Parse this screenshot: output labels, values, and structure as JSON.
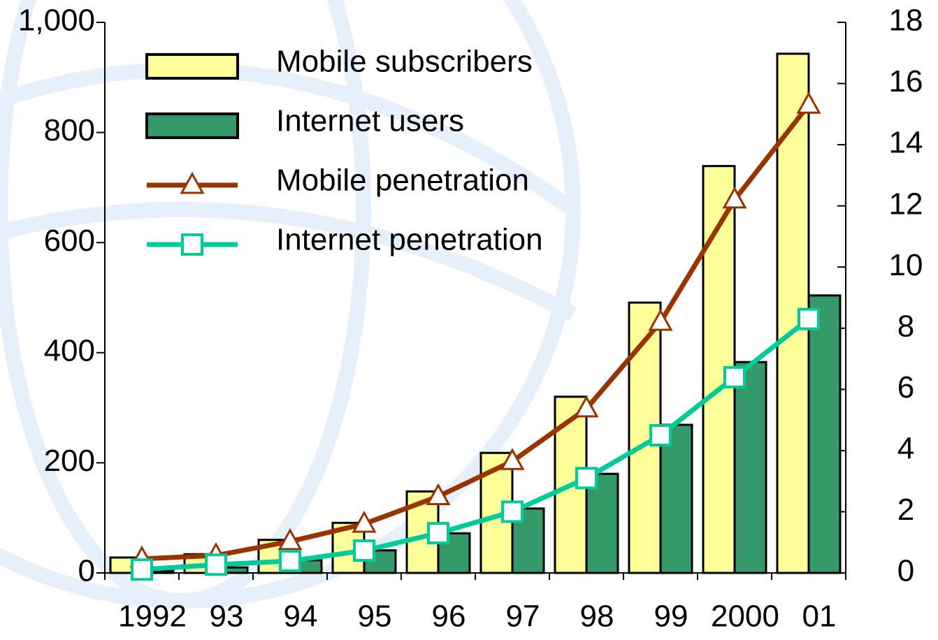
{
  "chart_data": {
    "type": "bar-line",
    "categories": [
      "1992",
      "93",
      "94",
      "95",
      "96",
      "97",
      "98",
      "99",
      "2000",
      "01"
    ],
    "series": [
      {
        "name": "Mobile subscribers",
        "type": "bar",
        "color": "#ffff99",
        "values": [
          28,
          34,
          60,
          91,
          148,
          218,
          320,
          491,
          739,
          943
        ]
      },
      {
        "name": "Internet users",
        "type": "bar",
        "color": "#339966",
        "values": [
          4,
          10,
          23,
          41,
          72,
          117,
          180,
          269,
          383,
          504
        ]
      },
      {
        "name": "Mobile penetration",
        "type": "line",
        "axis": "y2",
        "marker": "triangle",
        "color": "#993300",
        "values": [
          0.46,
          0.57,
          1.03,
          1.6,
          2.5,
          3.65,
          5.37,
          8.2,
          12.2,
          15.3
        ]
      },
      {
        "name": "Internet penetration",
        "type": "line",
        "axis": "y2",
        "marker": "square",
        "color": "#00cc99",
        "values": [
          0.11,
          0.27,
          0.39,
          0.73,
          1.3,
          2.0,
          3.1,
          4.5,
          6.4,
          8.3
        ]
      }
    ],
    "ylim": [
      0,
      1000
    ],
    "yticks": [
      0,
      200,
      400,
      600,
      800,
      {
        "value": 1000,
        "label": "1,000"
      }
    ],
    "y2lim": [
      0,
      18
    ],
    "y2ticks": [
      0,
      2,
      4,
      6,
      8,
      10,
      12,
      14,
      16,
      18
    ]
  }
}
